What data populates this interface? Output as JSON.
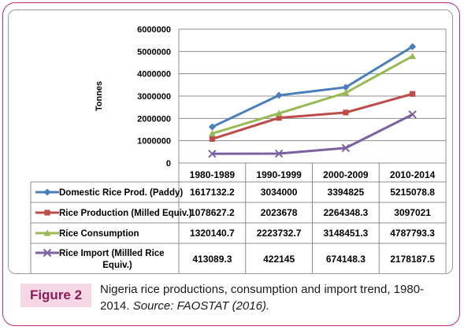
{
  "chart_data": {
    "type": "line",
    "ylabel": "Tonnes",
    "ylim": [
      0,
      6000000
    ],
    "yticks": [
      "0",
      "1000000",
      "2000000",
      "3000000",
      "4000000",
      "5000000",
      "6000000"
    ],
    "categories": [
      "1980-1989",
      "1990-1999",
      "2000-2009",
      "2010-2014"
    ],
    "grid": "horizontal",
    "legend": "data table below chart",
    "series": [
      {
        "name": "Domestic Rice Prod. (Paddy)",
        "values": [
          1617132.2,
          3034000,
          3394825,
          5215078.8
        ],
        "labels": [
          "1617132.2",
          "3034000",
          "3394825",
          "5215078.8"
        ],
        "color": "#4a7ebb",
        "marker": "diamond"
      },
      {
        "name": "Rice Production (Milled Equiv.)",
        "values": [
          1078627.2,
          2023678,
          2264348.3,
          3097021
        ],
        "labels": [
          "1078627.2",
          "2023678",
          "2264348.3",
          "3097021"
        ],
        "color": "#be4b48",
        "marker": "square"
      },
      {
        "name": "Rice Consumption",
        "values": [
          1320140.7,
          2223732.7,
          3148451.3,
          4787793.3
        ],
        "labels": [
          "1320140.7",
          "2223732.7",
          "3148451.3",
          "4787793.3"
        ],
        "color": "#98b954",
        "marker": "triangle"
      },
      {
        "name": "Rice Import (Millled Rice Equiv.)",
        "values": [
          413089.3,
          422145,
          674148.3,
          2178187.5
        ],
        "labels": [
          "413089.3",
          "422145",
          "674148.3",
          "2178187.5"
        ],
        "color": "#7d60a0",
        "marker": "x"
      }
    ]
  },
  "caption": {
    "label": "Figure 2",
    "text": "Nigeria rice productions, consumption and import trend, 1980-2014.",
    "source": "Source: FAOSTAT (2016)."
  }
}
